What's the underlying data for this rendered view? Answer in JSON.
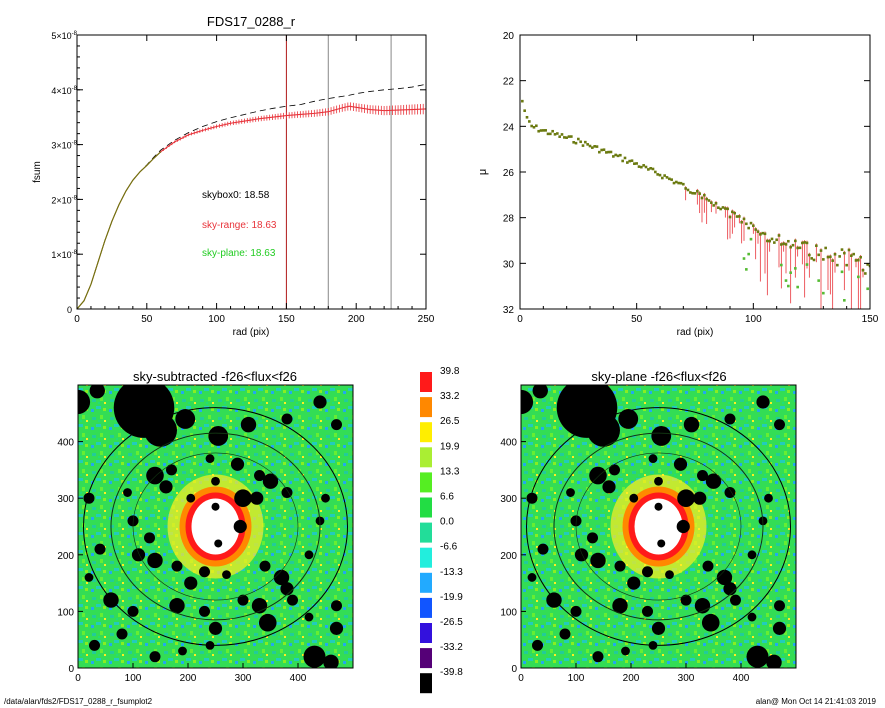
{
  "footer": {
    "path": "/data/alan/fds2/FDS17_0288_r_fsumplot2",
    "stamp": "alan@  Mon Oct 14 21:41:03 2019"
  },
  "colors": {
    "sky_range": "#e8333a",
    "sky_plane": "#22cc22",
    "marker_line": "#b01818",
    "grey_line": "#888888"
  },
  "chart_data": [
    {
      "type": "line",
      "title": "FDS17_0288_r",
      "xlabel": "rad (pix)",
      "ylabel": "fsum",
      "xlim": [
        0,
        250
      ],
      "ylim": [
        0,
        5e-08
      ],
      "xticks": [
        "0",
        "50",
        "100",
        "150",
        "200",
        "250"
      ],
      "yticks": [
        {
          "mant": "0",
          "exp": ""
        },
        {
          "mant": "1×10",
          "exp": "-8"
        },
        {
          "mant": "2×10",
          "exp": "-8"
        },
        {
          "mant": "3×10",
          "exp": "-8"
        },
        {
          "mant": "4×10",
          "exp": "-8"
        },
        {
          "mant": "5×10",
          "exp": "-8"
        }
      ],
      "vertical_lines": [
        150,
        180,
        225
      ],
      "annotations": [
        {
          "text": "skybox0: 18.58",
          "color": "#000000"
        },
        {
          "text": "sky-range: 18.63",
          "color": "#e8333a"
        },
        {
          "text": "sky-plane: 18.63",
          "color": "#22cc22"
        }
      ],
      "x": [
        0,
        5,
        10,
        15,
        20,
        25,
        30,
        35,
        40,
        45,
        50,
        55,
        60,
        70,
        80,
        90,
        100,
        110,
        120,
        130,
        140,
        150,
        160,
        170,
        180,
        190,
        195,
        200,
        210,
        220,
        230,
        240,
        250
      ],
      "series": [
        {
          "values": [
            0,
            0.15,
            0.45,
            0.85,
            1.25,
            1.6,
            1.9,
            2.15,
            2.35,
            2.5,
            2.62,
            2.75,
            2.87,
            3.05,
            3.18,
            3.26,
            3.33,
            3.39,
            3.43,
            3.47,
            3.5,
            3.53,
            3.55,
            3.57,
            3.6,
            3.67,
            3.7,
            3.68,
            3.64,
            3.62,
            3.63,
            3.64,
            3.65
          ]
        },
        {
          "values": [
            0,
            0.15,
            0.45,
            0.85,
            1.25,
            1.6,
            1.9,
            2.15,
            2.35,
            2.5,
            2.63,
            2.77,
            2.9,
            3.08,
            3.22,
            3.33,
            3.42,
            3.49,
            3.55,
            3.61,
            3.66,
            3.7,
            3.73,
            3.79,
            3.84,
            3.88,
            3.9,
            3.93,
            3.97,
            4.0,
            4.02,
            4.05,
            4.1
          ]
        }
      ],
      "yunit_scale": 1e-08
    },
    {
      "type": "scatter",
      "xlabel": "rad (pix)",
      "ylabel": "μ",
      "xlim": [
        0,
        150
      ],
      "ylim": [
        32,
        20
      ],
      "xticks": [
        "0",
        "50",
        "100",
        "150"
      ],
      "yticks": [
        "20",
        "22",
        "24",
        "26",
        "28",
        "30",
        "32"
      ],
      "profile_points": [
        [
          1,
          22.9
        ],
        [
          2,
          23.3
        ],
        [
          3,
          23.7
        ],
        [
          5,
          24.0
        ],
        [
          10,
          24.2
        ],
        [
          15,
          24.35
        ],
        [
          20,
          24.5
        ],
        [
          25,
          24.65
        ],
        [
          30,
          24.85
        ],
        [
          35,
          25.05
        ],
        [
          40,
          25.25
        ],
        [
          45,
          25.45
        ],
        [
          50,
          25.65
        ],
        [
          55,
          25.9
        ],
        [
          60,
          26.1
        ],
        [
          65,
          26.35
        ],
        [
          70,
          26.6
        ],
        [
          75,
          26.9
        ],
        [
          80,
          27.2
        ],
        [
          85,
          27.5
        ],
        [
          90,
          27.85
        ],
        [
          95,
          28.15
        ],
        [
          100,
          28.5
        ],
        [
          105,
          28.75
        ],
        [
          110,
          29.0
        ],
        [
          115,
          29.2
        ],
        [
          120,
          29.35
        ],
        [
          125,
          29.5
        ],
        [
          130,
          29.6
        ],
        [
          135,
          29.7
        ],
        [
          140,
          29.8
        ],
        [
          145,
          29.9
        ],
        [
          150,
          30.0
        ]
      ]
    },
    {
      "type": "heatmap",
      "title": "sky-subtracted -f26<flux<f26",
      "xlim": [
        0,
        500
      ],
      "ylim": [
        0,
        500
      ],
      "xticks": [
        "0",
        "100",
        "200",
        "300",
        "400"
      ],
      "yticks": [
        "0",
        "100",
        "200",
        "300",
        "400"
      ],
      "ellipse_semi_axes": [
        [
          240,
          210
        ],
        [
          190,
          165
        ],
        [
          150,
          130
        ]
      ],
      "center": [
        250,
        250
      ]
    },
    {
      "type": "heatmap",
      "title": "sky-plane -f26<flux<f26",
      "xlim": [
        0,
        500
      ],
      "ylim": [
        0,
        500
      ],
      "xticks": [
        "0",
        "100",
        "200",
        "300",
        "400"
      ],
      "yticks": [
        "0",
        "100",
        "200",
        "300",
        "400"
      ],
      "ellipse_semi_axes": [
        [
          240,
          210
        ],
        [
          190,
          165
        ],
        [
          150,
          130
        ]
      ],
      "center": [
        250,
        250
      ]
    }
  ],
  "colorbar": {
    "labels": [
      "39.8",
      "33.2",
      "26.5",
      "19.9",
      "13.3",
      "6.6",
      "0.0",
      "-6.6",
      "-13.3",
      "-19.9",
      "-26.5",
      "-33.2",
      "-39.8"
    ],
    "colors": [
      "#ff1a1a",
      "#ff8800",
      "#ffee00",
      "#aaee33",
      "#55ee22",
      "#22dd44",
      "#22dd99",
      "#22eedd",
      "#22aaff",
      "#1155ff",
      "#3311dd",
      "#550077",
      "#000000"
    ]
  }
}
